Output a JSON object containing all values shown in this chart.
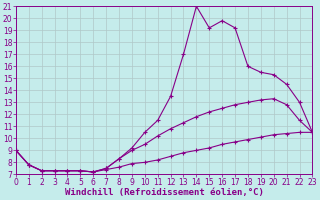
{
  "bg_color": "#c5eceb",
  "line_color": "#880088",
  "grid_color": "#b0c8c8",
  "xlim": [
    0,
    23
  ],
  "ylim": [
    7,
    21
  ],
  "xticks": [
    0,
    1,
    2,
    3,
    4,
    5,
    6,
    7,
    8,
    9,
    10,
    11,
    12,
    13,
    14,
    15,
    16,
    17,
    18,
    19,
    20,
    21,
    22,
    23
  ],
  "yticks": [
    7,
    8,
    9,
    10,
    11,
    12,
    13,
    14,
    15,
    16,
    17,
    18,
    19,
    20,
    21
  ],
  "line1_x": [
    0,
    1,
    2,
    3,
    4,
    5,
    6,
    7,
    8,
    9,
    10,
    11,
    12,
    13,
    14,
    15,
    16,
    17,
    18,
    19,
    20,
    21,
    22,
    23
  ],
  "line1_y": [
    9.0,
    7.8,
    7.3,
    7.3,
    7.3,
    7.3,
    7.2,
    7.4,
    7.6,
    7.9,
    8.0,
    8.2,
    8.5,
    8.8,
    9.0,
    9.2,
    9.5,
    9.7,
    9.9,
    10.1,
    10.3,
    10.4,
    10.5,
    10.5
  ],
  "line2_x": [
    0,
    1,
    2,
    3,
    4,
    5,
    6,
    7,
    8,
    9,
    10,
    11,
    12,
    13,
    14,
    15,
    16,
    17,
    18,
    19,
    20,
    21,
    22,
    23
  ],
  "line2_y": [
    9.0,
    7.8,
    7.3,
    7.3,
    7.3,
    7.3,
    7.2,
    7.5,
    8.3,
    9.0,
    9.5,
    10.2,
    10.8,
    11.3,
    11.8,
    12.2,
    12.5,
    12.8,
    13.0,
    13.2,
    13.3,
    12.8,
    11.5,
    10.5
  ],
  "line3_x": [
    0,
    1,
    2,
    3,
    4,
    5,
    6,
    7,
    8,
    9,
    10,
    11,
    12,
    13,
    14,
    15,
    16,
    17,
    18,
    19,
    20,
    21,
    22,
    23
  ],
  "line3_y": [
    9.0,
    7.8,
    7.3,
    7.3,
    7.3,
    7.3,
    7.2,
    7.5,
    8.3,
    9.2,
    10.5,
    11.5,
    13.5,
    17.0,
    21.0,
    19.2,
    19.8,
    19.2,
    16.0,
    15.5,
    15.3,
    14.5,
    13.0,
    10.5
  ],
  "xlabel": "Windchill (Refroidissement éolien,°C)",
  "xlabel_fontsize": 6.5,
  "tick_fontsize": 5.5
}
